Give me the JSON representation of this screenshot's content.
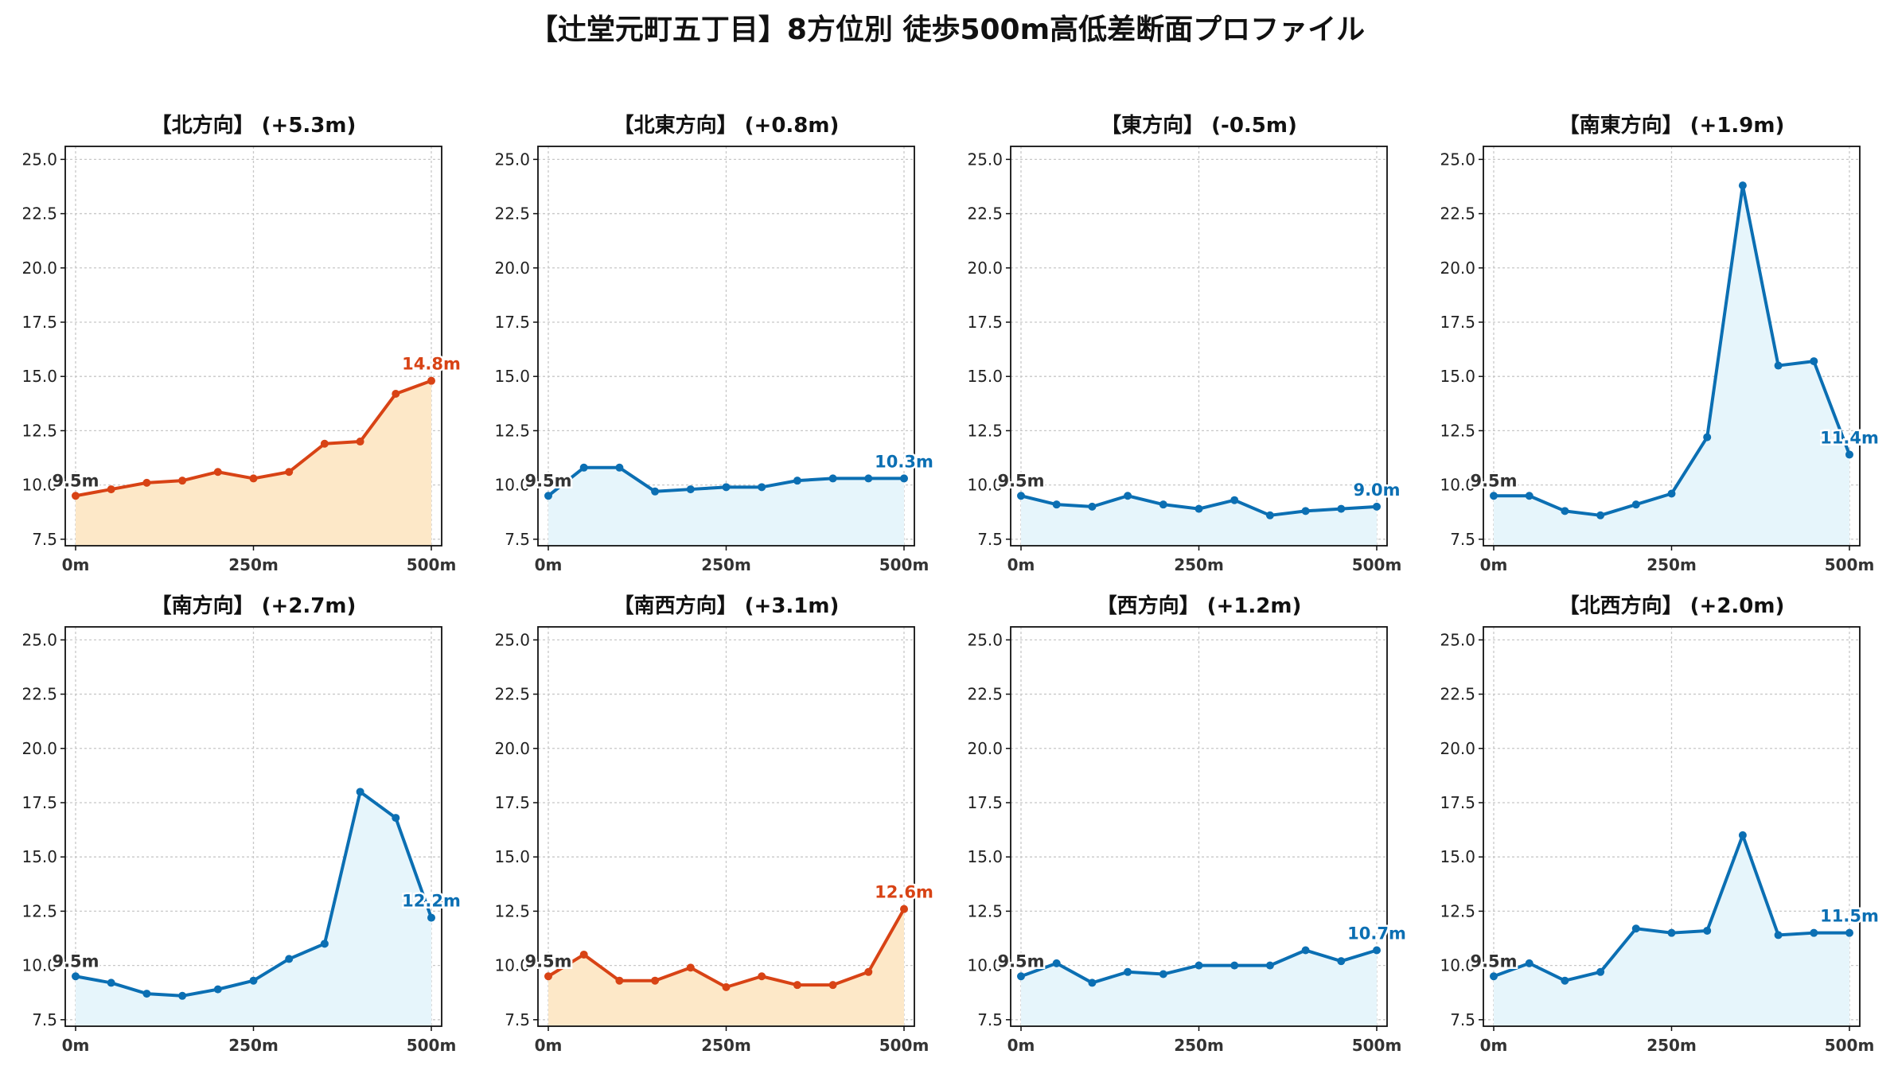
{
  "title": "【辻堂元町五丁目】8方位別 徒歩500m高低差断面プロファイル",
  "colors": {
    "up": "#d84315",
    "up_fill": "#fde8c8",
    "down": "#0b6fb3",
    "down_fill": "#e6f5fb",
    "start_label": "#333333"
  },
  "chart_data": [
    {
      "type": "area",
      "title": "【北方向】 (+5.3m)",
      "trend": "up",
      "x": [
        0,
        50,
        100,
        150,
        200,
        250,
        300,
        350,
        400,
        450,
        500
      ],
      "y": [
        9.5,
        9.8,
        10.1,
        10.2,
        10.6,
        10.3,
        10.6,
        11.9,
        12.0,
        14.2,
        14.8
      ],
      "start_label": "9.5m",
      "end_label": "14.8m",
      "ylim": [
        7.2,
        25.6
      ],
      "yticks": [
        "7.5",
        "10.0",
        "12.5",
        "15.0",
        "17.5",
        "20.0",
        "22.5",
        "25.0"
      ],
      "xticks": [
        "0m",
        "250m",
        "500m"
      ],
      "grid": true
    },
    {
      "type": "area",
      "title": "【北東方向】 (+0.8m)",
      "trend": "down",
      "x": [
        0,
        50,
        100,
        150,
        200,
        250,
        300,
        350,
        400,
        450,
        500
      ],
      "y": [
        9.5,
        10.8,
        10.8,
        9.7,
        9.8,
        9.9,
        9.9,
        10.2,
        10.3,
        10.3,
        10.3
      ],
      "start_label": "9.5m",
      "end_label": "10.3m",
      "ylim": [
        7.2,
        25.6
      ],
      "yticks": [
        "7.5",
        "10.0",
        "12.5",
        "15.0",
        "17.5",
        "20.0",
        "22.5",
        "25.0"
      ],
      "xticks": [
        "0m",
        "250m",
        "500m"
      ],
      "grid": true
    },
    {
      "type": "area",
      "title": "【東方向】 (-0.5m)",
      "trend": "down",
      "x": [
        0,
        50,
        100,
        150,
        200,
        250,
        300,
        350,
        400,
        450,
        500
      ],
      "y": [
        9.5,
        9.1,
        9.0,
        9.5,
        9.1,
        8.9,
        9.3,
        8.6,
        8.8,
        8.9,
        9.0
      ],
      "start_label": "9.5m",
      "end_label": "9.0m",
      "ylim": [
        7.2,
        25.6
      ],
      "yticks": [
        "7.5",
        "10.0",
        "12.5",
        "15.0",
        "17.5",
        "20.0",
        "22.5",
        "25.0"
      ],
      "xticks": [
        "0m",
        "250m",
        "500m"
      ],
      "grid": true
    },
    {
      "type": "area",
      "title": "【南東方向】 (+1.9m)",
      "trend": "down",
      "x": [
        0,
        50,
        100,
        150,
        200,
        250,
        300,
        350,
        400,
        450,
        500
      ],
      "y": [
        9.5,
        9.5,
        8.8,
        8.6,
        9.1,
        9.6,
        12.2,
        23.8,
        15.5,
        15.7,
        11.4
      ],
      "start_label": "9.5m",
      "end_label": "11.4m",
      "ylim": [
        7.2,
        25.6
      ],
      "yticks": [
        "7.5",
        "10.0",
        "12.5",
        "15.0",
        "17.5",
        "20.0",
        "22.5",
        "25.0"
      ],
      "xticks": [
        "0m",
        "250m",
        "500m"
      ],
      "grid": true
    },
    {
      "type": "area",
      "title": "【南方向】 (+2.7m)",
      "trend": "down",
      "x": [
        0,
        50,
        100,
        150,
        200,
        250,
        300,
        350,
        400,
        450,
        500
      ],
      "y": [
        9.5,
        9.2,
        8.7,
        8.6,
        8.9,
        9.3,
        10.3,
        11.0,
        18.0,
        16.8,
        12.2
      ],
      "start_label": "9.5m",
      "end_label": "12.2m",
      "ylim": [
        7.2,
        25.6
      ],
      "yticks": [
        "7.5",
        "10.0",
        "12.5",
        "15.0",
        "17.5",
        "20.0",
        "22.5",
        "25.0"
      ],
      "xticks": [
        "0m",
        "250m",
        "500m"
      ],
      "grid": true
    },
    {
      "type": "area",
      "title": "【南西方向】 (+3.1m)",
      "trend": "up",
      "x": [
        0,
        50,
        100,
        150,
        200,
        250,
        300,
        350,
        400,
        450,
        500
      ],
      "y": [
        9.5,
        10.5,
        9.3,
        9.3,
        9.9,
        9.0,
        9.5,
        9.1,
        9.1,
        9.7,
        12.6
      ],
      "start_label": "9.5m",
      "end_label": "12.6m",
      "ylim": [
        7.2,
        25.6
      ],
      "yticks": [
        "7.5",
        "10.0",
        "12.5",
        "15.0",
        "17.5",
        "20.0",
        "22.5",
        "25.0"
      ],
      "xticks": [
        "0m",
        "250m",
        "500m"
      ],
      "grid": true
    },
    {
      "type": "area",
      "title": "【西方向】 (+1.2m)",
      "trend": "down",
      "x": [
        0,
        50,
        100,
        150,
        200,
        250,
        300,
        350,
        400,
        450,
        500
      ],
      "y": [
        9.5,
        10.1,
        9.2,
        9.7,
        9.6,
        10.0,
        10.0,
        10.0,
        10.7,
        10.2,
        10.7
      ],
      "start_label": "9.5m",
      "end_label": "10.7m",
      "ylim": [
        7.2,
        25.6
      ],
      "yticks": [
        "7.5",
        "10.0",
        "12.5",
        "15.0",
        "17.5",
        "20.0",
        "22.5",
        "25.0"
      ],
      "xticks": [
        "0m",
        "250m",
        "500m"
      ],
      "grid": true
    },
    {
      "type": "area",
      "title": "【北西方向】 (+2.0m)",
      "trend": "down",
      "x": [
        0,
        50,
        100,
        150,
        200,
        250,
        300,
        350,
        400,
        450,
        500
      ],
      "y": [
        9.5,
        10.1,
        9.3,
        9.7,
        11.7,
        11.5,
        11.6,
        16.0,
        11.4,
        11.5,
        11.5
      ],
      "start_label": "9.5m",
      "end_label": "11.5m",
      "ylim": [
        7.2,
        25.6
      ],
      "yticks": [
        "7.5",
        "10.0",
        "12.5",
        "15.0",
        "17.5",
        "20.0",
        "22.5",
        "25.0"
      ],
      "xticks": [
        "0m",
        "250m",
        "500m"
      ],
      "grid": true
    }
  ]
}
